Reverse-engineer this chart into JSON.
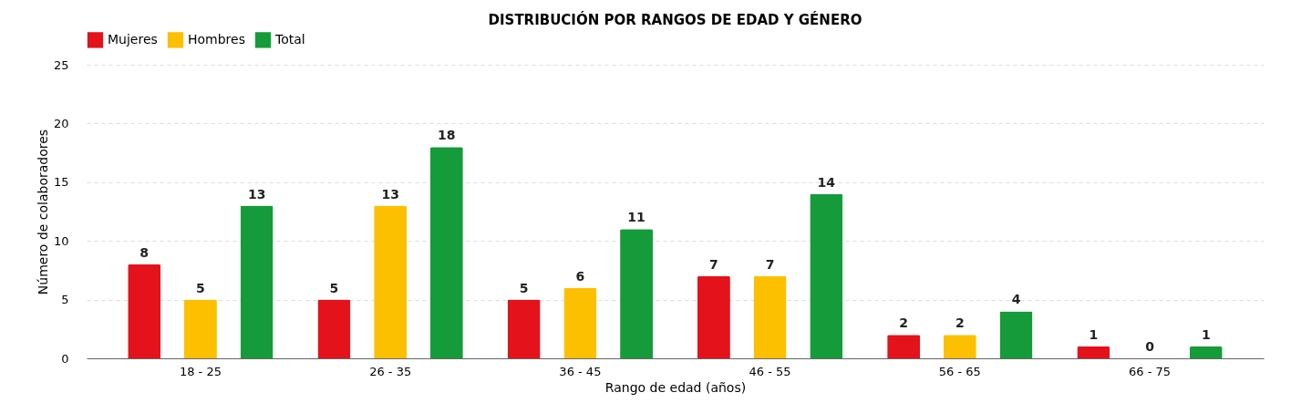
{
  "chart_data": {
    "type": "bar",
    "title": "DISTRIBUCIÓN POR RANGOS DE EDAD Y GÉNERO",
    "xlabel": "Rango de edad (años)",
    "ylabel": "Número de colaboradores",
    "categories": [
      "18 - 25",
      "26 - 35",
      "36 - 45",
      "46 - 55",
      "56 - 65",
      "66 - 75"
    ],
    "series": [
      {
        "name": "Mujeres",
        "color": "#e3121b",
        "values": [
          8,
          5,
          5,
          7,
          2,
          1
        ]
      },
      {
        "name": "Hombres",
        "color": "#fcc000",
        "values": [
          5,
          13,
          6,
          7,
          2,
          0
        ]
      },
      {
        "name": "Total",
        "color": "#169b3a",
        "values": [
          13,
          18,
          11,
          14,
          4,
          1
        ]
      }
    ],
    "ylim": [
      0,
      25
    ],
    "yticks": [
      0,
      5,
      10,
      15,
      20,
      25
    ],
    "grid": "y",
    "legend": "top",
    "data_labels": true
  }
}
